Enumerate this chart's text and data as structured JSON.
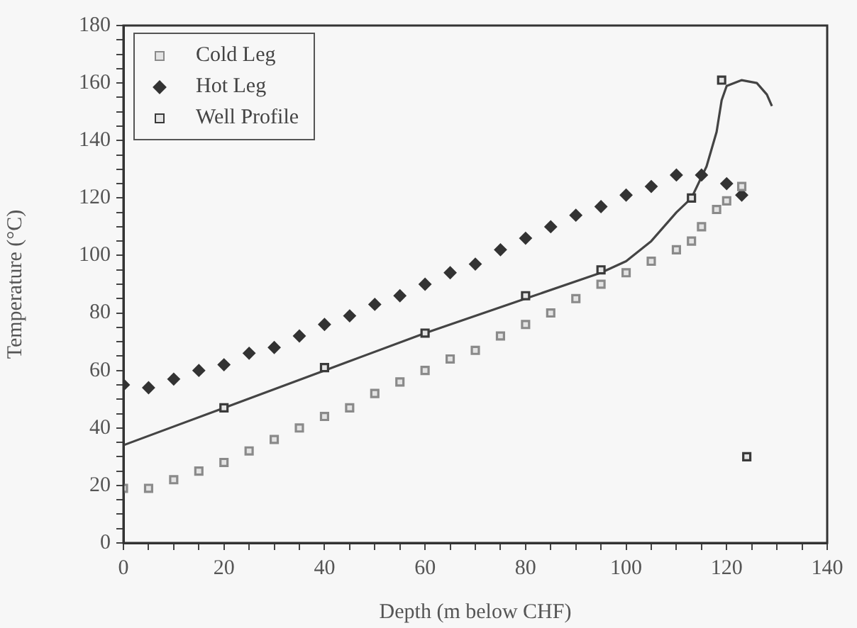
{
  "chart_data": {
    "type": "scatter",
    "xlabel": "Depth (m below CHF)",
    "ylabel": "Temperature (°C)",
    "xlim": [
      0,
      140
    ],
    "xticks": [
      0,
      {
        "value": 5,
        "label": null
      },
      {
        "value": 10,
        "label": null
      },
      {
        "value": 15,
        "label": null
      },
      20,
      {
        "value": 25,
        "label": null
      },
      {
        "value": 30,
        "label": null
      },
      {
        "value": 35,
        "label": null
      },
      40,
      {
        "value": 45,
        "label": null
      },
      {
        "value": 50,
        "label": null
      },
      {
        "value": 55,
        "label": null
      },
      60,
      {
        "value": 65,
        "label": null
      },
      {
        "value": 70,
        "label": null
      },
      {
        "value": 75,
        "label": null
      },
      80,
      {
        "value": 85,
        "label": null
      },
      {
        "value": 90,
        "label": null
      },
      {
        "value": 95,
        "label": null
      },
      100,
      {
        "value": 105,
        "label": null
      },
      {
        "value": 110,
        "label": null
      },
      {
        "value": 115,
        "label": null
      },
      120,
      {
        "value": 125,
        "label": null
      },
      {
        "value": 130,
        "label": null
      },
      {
        "value": 135,
        "label": null
      },
      140
    ],
    "ylim": [
      0,
      180
    ],
    "yticks": [
      0,
      {
        "value": 5,
        "label": null
      },
      {
        "value": 10,
        "label": null
      },
      {
        "value": 15,
        "label": null
      },
      20,
      {
        "value": 25,
        "label": null
      },
      {
        "value": 30,
        "label": null
      },
      {
        "value": 35,
        "label": null
      },
      40,
      {
        "value": 45,
        "label": null
      },
      {
        "value": 50,
        "label": null
      },
      {
        "value": 55,
        "label": null
      },
      60,
      {
        "value": 65,
        "label": null
      },
      {
        "value": 70,
        "label": null
      },
      {
        "value": 75,
        "label": null
      },
      80,
      {
        "value": 85,
        "label": null
      },
      {
        "value": 90,
        "label": null
      },
      {
        "value": 95,
        "label": null
      },
      100,
      {
        "value": 105,
        "label": null
      },
      {
        "value": 110,
        "label": null
      },
      {
        "value": 115,
        "label": null
      },
      120,
      {
        "value": 125,
        "label": null
      },
      {
        "value": 130,
        "label": null
      },
      {
        "value": 135,
        "label": null
      },
      140,
      {
        "value": 145,
        "label": null
      },
      {
        "value": 150,
        "label": null
      },
      {
        "value": 155,
        "label": null
      },
      160,
      {
        "value": 165,
        "label": null
      },
      {
        "value": 170,
        "label": null
      },
      {
        "value": 175,
        "label": null
      },
      180
    ],
    "grid": false,
    "legend": "top left",
    "series": [
      {
        "name": "Cold Leg",
        "color": "#8a8a8a",
        "marker": "square",
        "x": [
          0,
          5,
          10,
          15,
          20,
          25,
          30,
          35,
          40,
          45,
          50,
          55,
          60,
          65,
          70,
          75,
          80,
          85,
          90,
          95,
          100,
          105,
          110,
          113,
          115,
          118,
          120,
          123
        ],
        "values": [
          19,
          19,
          22,
          25,
          28,
          32,
          36,
          40,
          44,
          47,
          52,
          56,
          60,
          64,
          67,
          72,
          76,
          80,
          85,
          90,
          94,
          98,
          102,
          105,
          110,
          116,
          119,
          124
        ]
      },
      {
        "name": "Hot Leg",
        "color": "#333333",
        "marker": "diamond",
        "x": [
          0,
          5,
          10,
          15,
          20,
          25,
          30,
          35,
          40,
          45,
          50,
          55,
          60,
          65,
          70,
          75,
          80,
          85,
          90,
          95,
          100,
          105,
          110,
          115,
          120,
          123
        ],
        "values": [
          55,
          54,
          57,
          60,
          62,
          66,
          68,
          72,
          76,
          79,
          83,
          86,
          90,
          94,
          97,
          102,
          106,
          110,
          114,
          117,
          121,
          124,
          128,
          128,
          125,
          121
        ]
      },
      {
        "name": "Well Profile",
        "color": "#3a3a3a",
        "marker": "square",
        "x": [
          20,
          40,
          60,
          80,
          95,
          113,
          119,
          124
        ],
        "values": [
          47,
          61,
          73,
          86,
          95,
          120,
          161,
          30
        ]
      },
      {
        "type": "line",
        "color": "#444444",
        "marker": "none",
        "x": [
          0,
          20,
          40,
          60,
          80,
          95,
          100,
          105,
          110,
          113,
          116,
          118,
          119,
          120,
          123,
          126,
          128,
          129
        ],
        "values": [
          34,
          47,
          60,
          73,
          85,
          94,
          98,
          105,
          115,
          120,
          131,
          143,
          154,
          159,
          161,
          160,
          156,
          152
        ]
      }
    ]
  }
}
